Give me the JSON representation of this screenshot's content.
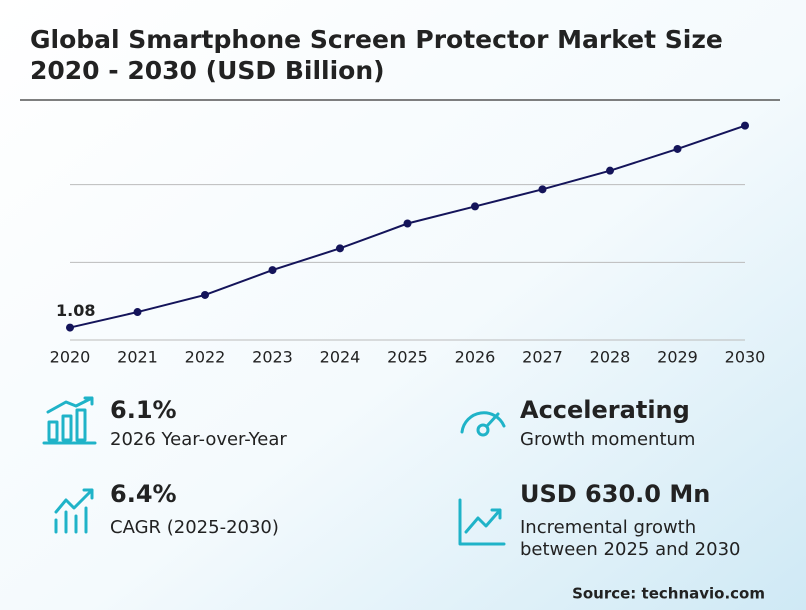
{
  "chart_data": {
    "type": "line",
    "title": [
      "Global Smartphone Screen Protector Market Size",
      "2020 - 2030 (USD Billion)"
    ],
    "categories": [
      "2020",
      "2021",
      "2022",
      "2023",
      "2024",
      "2025",
      "2026",
      "2027",
      "2028",
      "2029",
      "2030"
    ],
    "values": [
      1.08,
      1.18,
      1.29,
      1.45,
      1.59,
      1.75,
      1.86,
      1.97,
      2.09,
      2.23,
      2.38
    ],
    "color": "#14145a",
    "ylim": [
      1,
      2.5
    ],
    "yticks": [
      1,
      1.5,
      2
    ],
    "grid": true
  },
  "stats": [
    {
      "value": "6.1%",
      "label": [
        "2026 Year-over-Year"
      ]
    },
    {
      "value": "6.4%",
      "label": [
        "CAGR (2025-2030)"
      ]
    },
    {
      "value": "Accelerating",
      "label": [
        "Growth momentum"
      ]
    },
    {
      "value": "USD 630.0 Mn",
      "label": [
        "Incremental growth",
        "between 2025 and 2030"
      ]
    }
  ],
  "source": "Source: technavio.com"
}
